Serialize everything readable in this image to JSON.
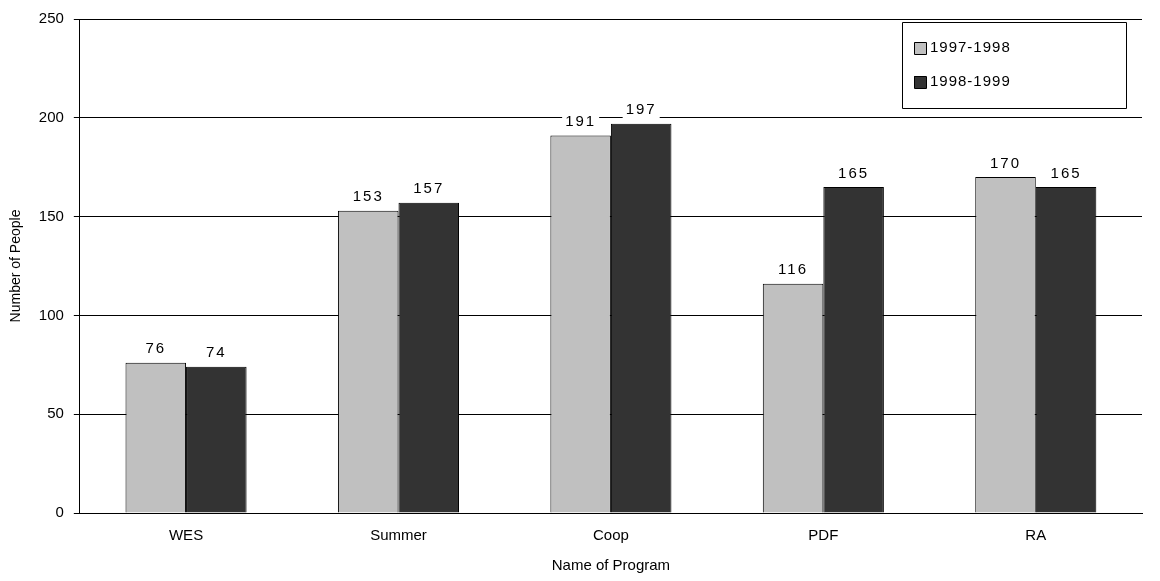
{
  "chart_data": {
    "type": "bar",
    "xlabel": "Name of Program",
    "ylabel": "Number of People",
    "categories": [
      "WES",
      "Summer",
      "Coop",
      "PDF",
      "RA"
    ],
    "series": [
      {
        "name": "1997-1998",
        "color": "#c0c0c0",
        "values": [
          76,
          153,
          191,
          116,
          170
        ]
      },
      {
        "name": "1998-1999",
        "color": "#333333",
        "values": [
          74,
          157,
          197,
          165,
          165
        ]
      }
    ],
    "ylim": [
      0,
      250
    ],
    "yticks": [
      0,
      50,
      100,
      150,
      200,
      250
    ],
    "grid": "y",
    "legend": "top right",
    "data_labels": true
  }
}
